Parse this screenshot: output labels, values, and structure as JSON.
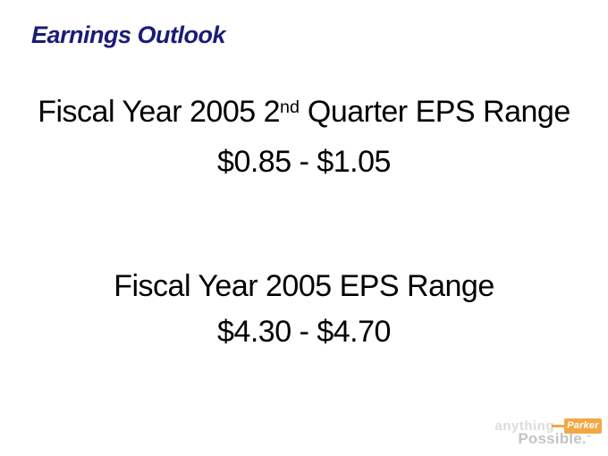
{
  "slide": {
    "title": "Earnings Outlook",
    "section1": {
      "heading_prefix": "Fiscal Year 2005 2",
      "heading_superscript": "nd",
      "heading_suffix": " Quarter EPS Range",
      "value": "$0.85 - $1.05"
    },
    "section2": {
      "heading": "Fiscal Year 2005 EPS Range",
      "value": "$4.30 - $4.70"
    }
  },
  "logo": {
    "tagline_top": "anything",
    "brand": "Parker",
    "tagline_bottom": "Possible.",
    "trademark": "™"
  },
  "colors": {
    "title_navy": "#1B1B78",
    "body_text": "#000000",
    "background": "#FFFFFF",
    "logo_orange": "#F2A842",
    "logo_gray_light": "#DCDCDC",
    "logo_gray": "#C4C4C4"
  }
}
